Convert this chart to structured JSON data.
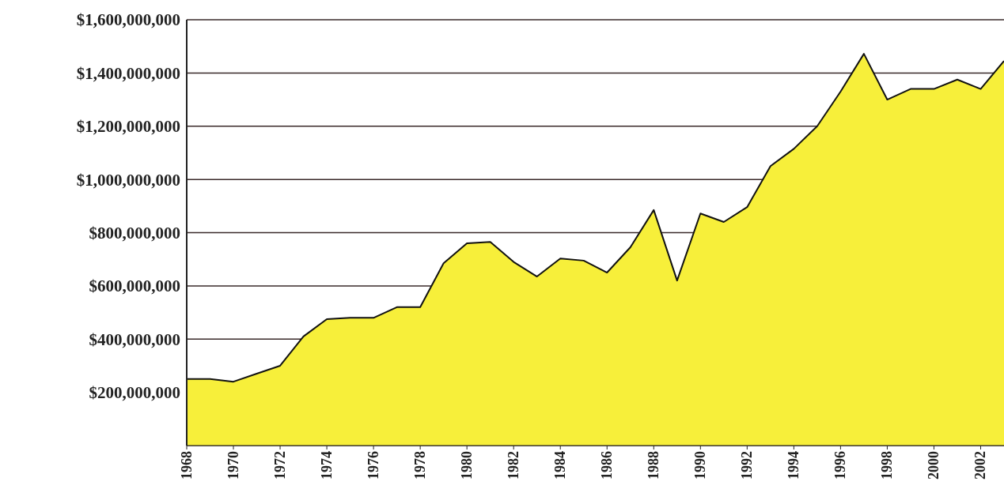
{
  "chart_data": {
    "type": "area",
    "x": [
      1968,
      1969,
      1970,
      1971,
      1972,
      1973,
      1974,
      1975,
      1976,
      1977,
      1978,
      1979,
      1980,
      1981,
      1982,
      1983,
      1984,
      1985,
      1986,
      1987,
      1988,
      1989,
      1990,
      1991,
      1992,
      1993,
      1994,
      1995,
      1996,
      1997,
      1998,
      1999,
      2000,
      2001,
      2002,
      2003
    ],
    "series": [
      {
        "color": "#f7ef3a",
        "values": [
          250000000,
          250000000,
          240000000,
          270000000,
          300000000,
          410000000,
          475000000,
          480000000,
          480000000,
          520000000,
          520000000,
          685000000,
          760000000,
          765000000,
          690000000,
          635000000,
          703000000,
          695000000,
          650000000,
          745000000,
          885000000,
          620000000,
          872000000,
          840000000,
          896000000,
          1050000000,
          1115000000,
          1200000000,
          1330000000,
          1472000000,
          1300000000,
          1340000000,
          1340000000,
          1375000000,
          1340000000,
          1445000000
        ]
      }
    ],
    "xlim": [
      1968,
      2003
    ],
    "xticks": [
      1968,
      1970,
      1972,
      1974,
      1976,
      1978,
      1980,
      1982,
      1984,
      1986,
      1988,
      1990,
      1992,
      1994,
      1996,
      1998,
      2000,
      2002
    ],
    "ylim": [
      0,
      1600000000
    ],
    "yticks": [
      {
        "value": 200000000,
        "label": "$200,000,000"
      },
      {
        "value": 400000000,
        "label": "$400,000,000"
      },
      {
        "value": 600000000,
        "label": "$600,000,000"
      },
      {
        "value": 800000000,
        "label": "$800,000,000"
      },
      {
        "value": 1000000000,
        "label": "$1,000,000,000"
      },
      {
        "value": 1200000000,
        "label": "$1,200,000,000"
      },
      {
        "value": 1400000000,
        "label": "$1,400,000,000"
      },
      {
        "value": 1600000000,
        "label": "$1,600,000,000"
      }
    ],
    "grid": "y",
    "legend": false,
    "marker": "none",
    "line_style": "solid"
  }
}
